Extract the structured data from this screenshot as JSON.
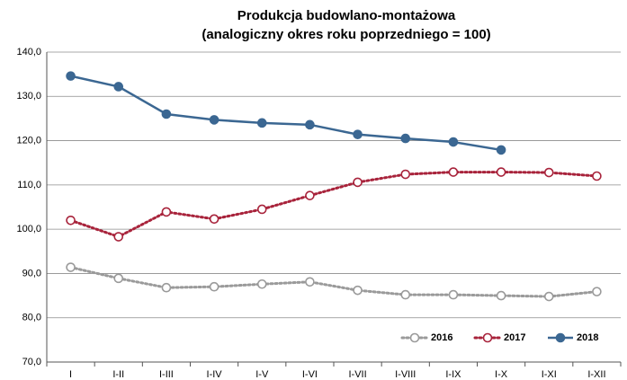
{
  "chart_data": {
    "type": "line",
    "title": "Produkcja budowlano-montażowa",
    "subtitle": "(analogiczny okres roku poprzedniego = 100)",
    "categories": [
      "I",
      "I-II",
      "I-III",
      "I-IV",
      "I-V",
      "I-VI",
      "I-VII",
      "I-VIII",
      "I-IX",
      "I-X",
      "I-XI",
      "I-XII"
    ],
    "series": [
      {
        "name": "2016",
        "color": "#9a9a9a",
        "line_style": "dotted",
        "marker": "hollow",
        "values": [
          91.4,
          88.9,
          86.8,
          87.0,
          87.6,
          88.1,
          86.2,
          85.2,
          85.2,
          85.0,
          84.8,
          85.9
        ]
      },
      {
        "name": "2017",
        "color": "#a8233b",
        "line_style": "dotted",
        "marker": "hollow",
        "values": [
          102.0,
          98.3,
          103.9,
          102.3,
          104.5,
          107.6,
          110.6,
          112.4,
          112.9,
          112.9,
          112.8,
          112.0
        ]
      },
      {
        "name": "2018",
        "color": "#3b6792",
        "line_style": "solid",
        "marker": "filled",
        "values": [
          134.6,
          132.2,
          126.0,
          124.7,
          124.0,
          123.6,
          121.4,
          120.5,
          119.7,
          117.9,
          null,
          null
        ]
      }
    ],
    "ylim": [
      70,
      140
    ],
    "yticks": [
      {
        "value": 70,
        "label": "70,0"
      },
      {
        "value": 80,
        "label": "80,0"
      },
      {
        "value": 90,
        "label": "90,0"
      },
      {
        "value": 100,
        "label": "100,0"
      },
      {
        "value": 110,
        "label": "110,0"
      },
      {
        "value": 120,
        "label": "120,0"
      },
      {
        "value": 130,
        "label": "130,0"
      },
      {
        "value": 140,
        "label": "140,0"
      }
    ],
    "grid": true,
    "legend": "bottom-right"
  }
}
